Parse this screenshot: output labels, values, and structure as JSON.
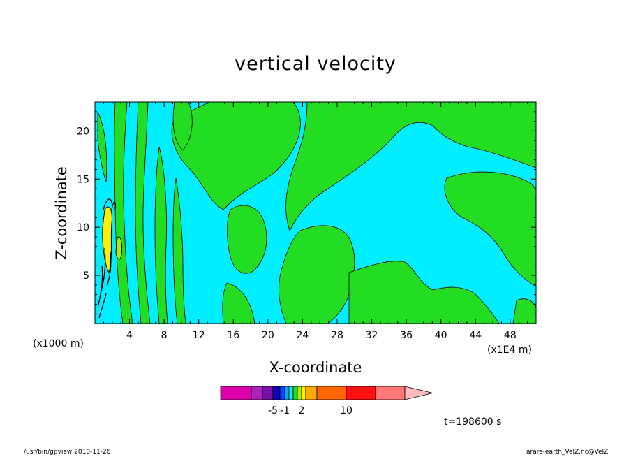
{
  "chart_data": {
    "type": "heatmap",
    "title": "vertical velocity",
    "xlabel": "X-coordinate",
    "ylabel": "Z-coordinate",
    "x_unit": "(x1E4 m)",
    "y_unit": "(x1000 m)",
    "xlim": [
      0,
      51
    ],
    "ylim": [
      0,
      23
    ],
    "x_ticks": [
      4,
      8,
      12,
      16,
      20,
      24,
      28,
      32,
      36,
      40,
      44,
      48
    ],
    "y_ticks": [
      5,
      10,
      15,
      20
    ],
    "colorbar": {
      "colors": [
        "#dd00aa",
        "#aa22bb",
        "#7711aa",
        "#1100bb",
        "#0044ff",
        "#00aaff",
        "#00eeff",
        "#22dd22",
        "#aaee00",
        "#ffee00",
        "#ffaa00",
        "#ff6600",
        "#ff1111",
        "#ff7777",
        "#ffbbbb"
      ],
      "tick_labels": [
        "-5",
        "-1",
        "2",
        "10"
      ]
    },
    "time_label": "t=198600 s"
  },
  "footer": {
    "left": "/usr/bin/gpview   2010-11-26",
    "right": "arare-earth_VelZ.nc@VelZ"
  }
}
